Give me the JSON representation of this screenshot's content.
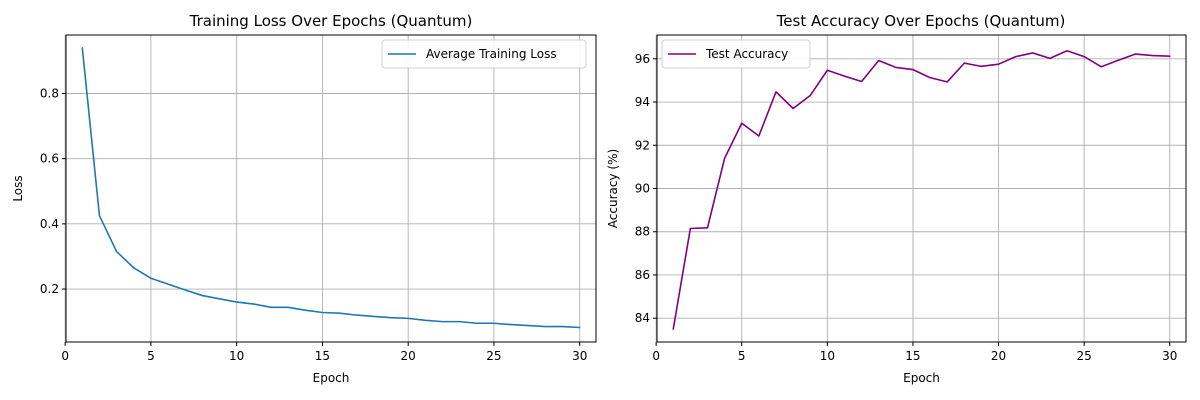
{
  "chart_data": [
    {
      "type": "line",
      "title": "Training Loss Over Epochs (Quantum)",
      "xlabel": "Epoch",
      "ylabel": "Loss",
      "xlim": [
        0.05,
        30.95
      ],
      "ylim": [
        0.0375,
        0.9795
      ],
      "xticks": [
        0,
        5,
        10,
        15,
        20,
        25,
        30
      ],
      "yticks": [
        0.2,
        0.4,
        0.6,
        0.8
      ],
      "ytick_labels": [
        "0.2",
        "0.4",
        "0.6",
        "0.8"
      ],
      "grid": true,
      "legend_position": "top-right",
      "series": [
        {
          "name": "Average Training Loss",
          "color": "#1f77b4",
          "x": [
            1,
            2,
            3,
            4,
            5,
            6,
            7,
            8,
            9,
            10,
            11,
            12,
            13,
            14,
            15,
            16,
            17,
            18,
            19,
            20,
            21,
            22,
            23,
            24,
            25,
            26,
            27,
            28,
            29,
            30
          ],
          "y": [
            0.94,
            0.425,
            0.315,
            0.265,
            0.233,
            0.215,
            0.197,
            0.18,
            0.17,
            0.16,
            0.154,
            0.144,
            0.144,
            0.135,
            0.128,
            0.126,
            0.12,
            0.116,
            0.112,
            0.11,
            0.104,
            0.1,
            0.1,
            0.095,
            0.095,
            0.091,
            0.088,
            0.085,
            0.085,
            0.082
          ]
        }
      ]
    },
    {
      "type": "line",
      "title": "Test Accuracy Over Epochs (Quantum)",
      "xlabel": "Epoch",
      "ylabel": "Accuracy (%)",
      "xlim": [
        0.05,
        30.95
      ],
      "ylim": [
        82.9,
        97.1
      ],
      "xticks": [
        0,
        5,
        10,
        15,
        20,
        25,
        30
      ],
      "yticks": [
        84,
        86,
        88,
        90,
        92,
        94,
        96
      ],
      "ytick_labels": [
        "84",
        "86",
        "88",
        "90",
        "92",
        "94",
        "96"
      ],
      "grid": true,
      "legend_position": "top-left",
      "series": [
        {
          "name": "Test Accuracy",
          "color": "#800080",
          "x": [
            1,
            2,
            3,
            4,
            5,
            6,
            7,
            8,
            9,
            10,
            11,
            12,
            13,
            14,
            15,
            16,
            17,
            18,
            19,
            20,
            21,
            22,
            23,
            24,
            25,
            26,
            27,
            28,
            29,
            30
          ],
          "y": [
            83.5,
            88.15,
            88.18,
            91.4,
            93.02,
            92.43,
            94.47,
            93.7,
            94.3,
            95.47,
            95.2,
            94.95,
            95.92,
            95.6,
            95.5,
            95.13,
            94.93,
            95.8,
            95.65,
            95.75,
            96.1,
            96.27,
            96.02,
            96.37,
            96.1,
            95.63,
            95.93,
            96.22,
            96.15,
            96.12
          ]
        }
      ]
    }
  ]
}
